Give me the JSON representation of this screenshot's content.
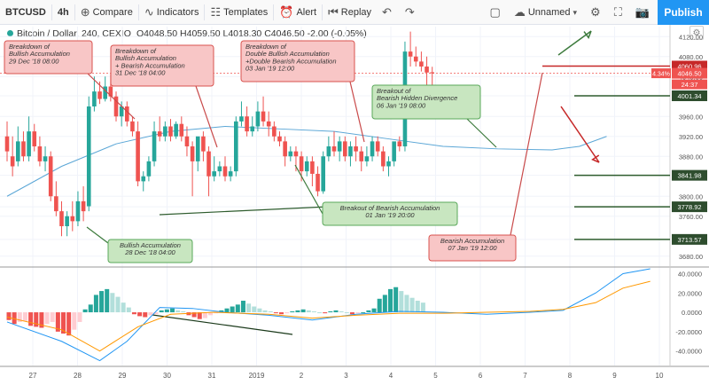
{
  "toolbar": {
    "symbol": "BTCUSD",
    "interval": "4h",
    "compare": "Compare",
    "indicators": "Indicators",
    "templates": "Templates",
    "alert": "Alert",
    "replay": "Replay",
    "layout_name": "Unnamed",
    "publish": "Publish"
  },
  "legend": {
    "title": "Bitcoin / Dollar, 240, CEXIO",
    "ohlc": "O4048.50  H4059.50  L4018.30  C4046.50  -2.00 (-0.05%)"
  },
  "colors": {
    "up": "#26a69a",
    "down": "#ef5350",
    "ma": "#5aa6d6",
    "hist_up_strong": "#26a69a",
    "hist_up_weak": "#b2dfdb",
    "hist_down_strong": "#ef5350",
    "hist_down_weak": "#ffcdd2",
    "macd": "#2196f3",
    "signal": "#ff9800",
    "level": "#2e5c2e",
    "bear_note_fill": "#f8c6c6",
    "bear_note_border": "#d9534f",
    "bull_note_fill": "#c8e6c0",
    "bull_note_border": "#5aa85a"
  },
  "chart_data": {
    "type": "candlestick",
    "title": "Bitcoin / Dollar, 240, CEXIO",
    "ylim": [
      3660,
      4140
    ],
    "y_ticks": [
      4120,
      4080,
      4040,
      4001.34,
      3960,
      3920,
      3880,
      3841.98,
      3800,
      3778.92,
      3760,
      3713.57,
      3680
    ],
    "x_tick_labels": [
      "27",
      "28",
      "29",
      "30",
      "31",
      "2019",
      "2",
      "3",
      "4",
      "5",
      "6",
      "7",
      "8",
      "9",
      "10"
    ],
    "candles": [
      [
        3920,
        3950,
        3890,
        3870
      ],
      [
        3880,
        3920,
        3860,
        3840
      ],
      [
        3870,
        3940,
        3910,
        3860
      ],
      [
        3910,
        3930,
        3880,
        3870
      ],
      [
        3880,
        3960,
        3930,
        3870
      ],
      [
        3930,
        3945,
        3900,
        3890
      ],
      [
        3900,
        3920,
        3870,
        3860
      ],
      [
        3870,
        3900,
        3880,
        3850
      ],
      [
        3880,
        3890,
        3800,
        3790
      ],
      [
        3800,
        3830,
        3770,
        3760
      ],
      [
        3770,
        3790,
        3740,
        3720
      ],
      [
        3740,
        3770,
        3760,
        3720
      ],
      [
        3760,
        3790,
        3750,
        3730
      ],
      [
        3750,
        3810,
        3790,
        3740
      ],
      [
        3790,
        3820,
        3770,
        3750
      ],
      [
        3780,
        4000,
        3980,
        3770
      ],
      [
        3980,
        4040,
        4010,
        3970
      ],
      [
        4010,
        4030,
        3995,
        3985
      ],
      [
        3995,
        4040,
        4020,
        3990
      ],
      [
        4020,
        4045,
        4000,
        3990
      ],
      [
        4000,
        4010,
        3960,
        3950
      ],
      [
        3960,
        3990,
        3980,
        3940
      ],
      [
        3980,
        3990,
        3950,
        3940
      ],
      [
        3950,
        3960,
        3930,
        3920
      ],
      [
        3930,
        3950,
        3830,
        3820
      ],
      [
        3830,
        3850,
        3840,
        3810
      ],
      [
        3840,
        3880,
        3870,
        3830
      ],
      [
        3870,
        3950,
        3930,
        3860
      ],
      [
        3930,
        3960,
        3920,
        3910
      ],
      [
        3920,
        3950,
        3940,
        3910
      ],
      [
        3940,
        3955,
        3920,
        3910
      ],
      [
        3920,
        3950,
        3945,
        3915
      ],
      [
        3945,
        3960,
        3920,
        3910
      ],
      [
        3920,
        3940,
        3900,
        3880
      ],
      [
        3900,
        3910,
        3870,
        3800
      ],
      [
        3870,
        3900,
        3920,
        3850
      ],
      [
        3920,
        3930,
        3890,
        3870
      ],
      [
        3890,
        3900,
        3840,
        3800
      ],
      [
        3840,
        3880,
        3850,
        3830
      ],
      [
        3850,
        3870,
        3860,
        3840
      ],
      [
        3860,
        3880,
        3840,
        3830
      ],
      [
        3840,
        3860,
        3850,
        3830
      ],
      [
        3850,
        3960,
        3950,
        3840
      ],
      [
        3950,
        3990,
        3960,
        3940
      ],
      [
        3960,
        3980,
        3930,
        3920
      ],
      [
        3930,
        3960,
        3940,
        3920
      ],
      [
        3940,
        3990,
        3970,
        3930
      ],
      [
        3970,
        4000,
        3950,
        3940
      ],
      [
        3950,
        3970,
        3940,
        3920
      ],
      [
        3940,
        3950,
        3920,
        3910
      ],
      [
        3920,
        3930,
        3910,
        3900
      ],
      [
        3910,
        3920,
        3880,
        3860
      ],
      [
        3880,
        3900,
        3890,
        3870
      ],
      [
        3890,
        3900,
        3880,
        3850
      ],
      [
        3880,
        3890,
        3850,
        3830
      ],
      [
        3850,
        3880,
        3870,
        3840
      ],
      [
        3870,
        3880,
        3845,
        3820
      ],
      [
        3845,
        3860,
        3810,
        3800
      ],
      [
        3810,
        3890,
        3880,
        3805
      ],
      [
        3880,
        3920,
        3900,
        3870
      ],
      [
        3900,
        3930,
        3890,
        3880
      ],
      [
        3890,
        3920,
        3910,
        3870
      ],
      [
        3910,
        3920,
        3880,
        3870
      ],
      [
        3880,
        3910,
        3900,
        3860
      ],
      [
        3900,
        3920,
        3890,
        3870
      ],
      [
        3890,
        3900,
        3870,
        3850
      ],
      [
        3870,
        3900,
        3880,
        3860
      ],
      [
        3880,
        3920,
        3910,
        3870
      ],
      [
        3910,
        3920,
        3890,
        3880
      ],
      [
        3890,
        3900,
        3860,
        3850
      ],
      [
        3860,
        3880,
        3870,
        3840
      ],
      [
        3870,
        3900,
        3910,
        3860
      ],
      [
        3910,
        3920,
        3900,
        3890
      ],
      [
        3900,
        4110,
        4090,
        3890
      ],
      [
        4090,
        4130,
        4080,
        4060
      ],
      [
        4080,
        4100,
        4070,
        4060
      ],
      [
        4070,
        4090,
        4060,
        4050
      ],
      [
        4060,
        4080,
        4048,
        4020
      ],
      [
        4048.5,
        4059.5,
        4046.5,
        4018.3
      ]
    ],
    "moving_average": [
      [
        0,
        3800
      ],
      [
        10,
        3860
      ],
      [
        20,
        3905
      ],
      [
        30,
        3930
      ],
      [
        40,
        3940
      ],
      [
        50,
        3935
      ],
      [
        60,
        3930
      ],
      [
        70,
        3915
      ],
      [
        80,
        3900
      ],
      [
        90,
        3895
      ],
      [
        100,
        3893
      ],
      [
        105,
        3900
      ],
      [
        110,
        3920
      ]
    ],
    "macd": {
      "ylim": [
        -55,
        45
      ],
      "y_ticks": [
        40,
        20,
        0,
        -20,
        -40
      ],
      "histogram": [
        -8,
        -12,
        -10,
        -9,
        -14,
        -15,
        -16,
        -12,
        -10,
        -20,
        -22,
        -24,
        -18,
        -10,
        3,
        8,
        18,
        22,
        24,
        20,
        16,
        10,
        5,
        -2,
        -4,
        -5,
        -3,
        -2,
        2,
        3,
        4,
        2,
        1,
        -3,
        -5,
        -7,
        -6,
        -3,
        -1,
        2,
        4,
        6,
        8,
        12,
        9,
        6,
        4,
        2,
        1,
        -1,
        -2,
        -1,
        1,
        2,
        3,
        2,
        1,
        0,
        -1,
        1,
        2,
        1,
        0,
        -2,
        -1,
        0,
        2,
        4,
        14,
        18,
        24,
        26,
        22,
        18,
        15,
        12,
        10
      ],
      "macd_line": [
        [
          0,
          -10
        ],
        [
          10,
          -30
        ],
        [
          17,
          -50
        ],
        [
          22,
          -30
        ],
        [
          28,
          5
        ],
        [
          34,
          4
        ],
        [
          40,
          0
        ],
        [
          48,
          -3
        ],
        [
          56,
          -8
        ],
        [
          64,
          -2
        ],
        [
          72,
          1
        ],
        [
          80,
          0
        ],
        [
          88,
          -2
        ],
        [
          96,
          0
        ],
        [
          102,
          2
        ],
        [
          108,
          20
        ],
        [
          113,
          40
        ],
        [
          118,
          45
        ]
      ],
      "signal_line": [
        [
          0,
          -5
        ],
        [
          10,
          -18
        ],
        [
          17,
          -40
        ],
        [
          24,
          -15
        ],
        [
          30,
          -2
        ],
        [
          38,
          0
        ],
        [
          48,
          -2
        ],
        [
          56,
          -6
        ],
        [
          64,
          -3
        ],
        [
          72,
          -1
        ],
        [
          80,
          -1
        ],
        [
          88,
          0
        ],
        [
          96,
          1
        ],
        [
          102,
          3
        ],
        [
          108,
          10
        ],
        [
          113,
          25
        ],
        [
          118,
          32
        ]
      ]
    },
    "levels": [
      {
        "label": "4060.96",
        "value": 4060.96,
        "kind": "resistance"
      },
      {
        "label": "4001.34",
        "value": 4001.34,
        "kind": "support"
      },
      {
        "label": "3841.98",
        "value": 3841.98,
        "kind": "support"
      },
      {
        "label": "3778.92",
        "value": 3778.92,
        "kind": "support"
      },
      {
        "label": "3713.57",
        "value": 3713.57,
        "kind": "support"
      }
    ],
    "price_tags": [
      {
        "label": "4.34%",
        "value": 4046.5,
        "kind": "percent"
      },
      {
        "label": "4046.50",
        "value": 4046.5,
        "kind": "last"
      },
      {
        "label": "24:37",
        "value": 4020,
        "kind": "timer"
      }
    ],
    "annotations": [
      {
        "kind": "bear",
        "text": [
          "Breakdown of",
          "Bullish Accumulation",
          "29 Dec '18 08:00"
        ]
      },
      {
        "kind": "bear",
        "text": [
          "Breakdown of",
          "Bullish Accumulation",
          "+ Bearish Accumulation",
          "31 Dec '18 04:00"
        ]
      },
      {
        "kind": "bear",
        "text": [
          "Breakdown of",
          "Double Bullish Accumulation",
          "+Double Bearish Accumulation",
          "03 Jan '19 12:00"
        ]
      },
      {
        "kind": "bull",
        "text": [
          "Breakout of",
          "Bearish Hidden Divergence",
          "06 Jan '19 08:00"
        ]
      },
      {
        "kind": "bull",
        "text": [
          "Breakout of Bearish Accumulation",
          "01 Jan '19 20:00"
        ]
      },
      {
        "kind": "bull",
        "text": [
          "Bullish Accumulation",
          "28 Dec '18 04:00"
        ]
      },
      {
        "kind": "bear",
        "text": [
          "Bearish Accumulation",
          "07 Jan '19 12:00"
        ]
      }
    ]
  }
}
